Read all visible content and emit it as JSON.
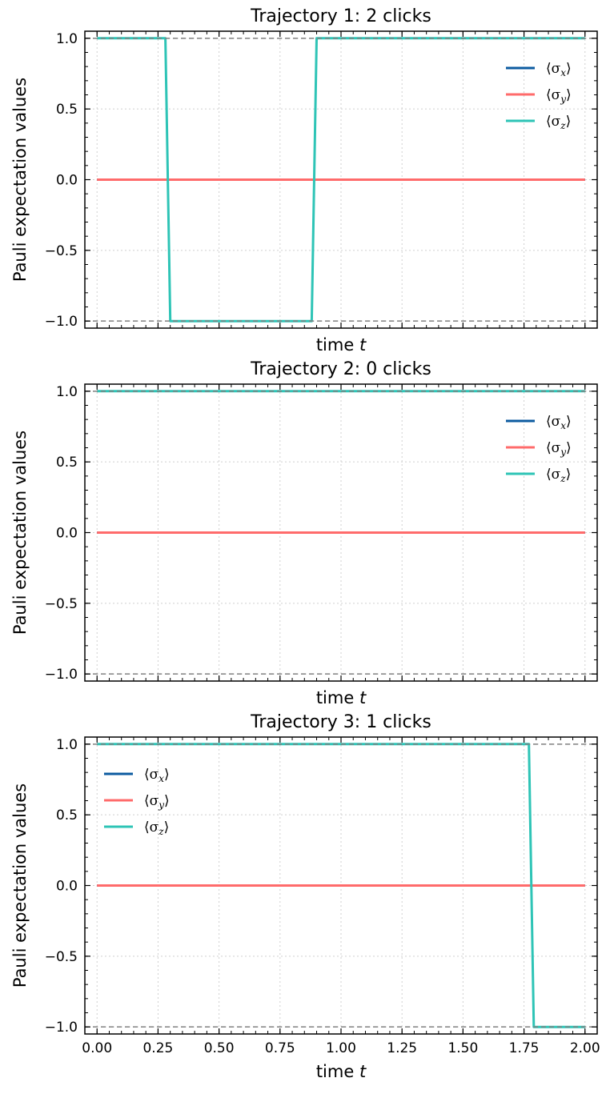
{
  "chart_data": [
    {
      "type": "line",
      "title": "Trajectory 1: 2 clicks",
      "xlabel": "time t",
      "ylabel": "Pauli expectation values",
      "xlim": [
        -0.05,
        2.05
      ],
      "ylim": [
        -1.05,
        1.05
      ],
      "x_ticks": [
        0.0,
        0.25,
        0.5,
        0.75,
        1.0,
        1.25,
        1.5,
        1.75,
        2.0
      ],
      "x_tick_labels_shown": false,
      "y_ticks": [
        -1.0,
        -0.5,
        0.0,
        0.5,
        1.0
      ],
      "y_tick_labels": [
        "−1.0",
        "−0.5",
        "0.0",
        "0.5",
        "1.0"
      ],
      "reference_lines": [
        1.0,
        -1.0
      ],
      "grid": true,
      "legend_position": "upper right",
      "series": [
        {
          "name": "⟨σx⟩",
          "color": "#0c5ba0",
          "x": [
            0.0,
            2.0
          ],
          "y": [
            0.0,
            0.0
          ]
        },
        {
          "name": "⟨σy⟩",
          "color": "#ff6b6b",
          "x": [
            0.0,
            2.0
          ],
          "y": [
            0.0,
            0.0
          ]
        },
        {
          "name": "⟨σz⟩",
          "color": "#2ec4b6",
          "x": [
            0.0,
            0.28,
            0.3,
            0.88,
            0.9,
            2.0
          ],
          "y": [
            1.0,
            1.0,
            -1.0,
            -1.0,
            1.0,
            1.0
          ]
        }
      ]
    },
    {
      "type": "line",
      "title": "Trajectory 2: 0 clicks",
      "xlabel": "time t",
      "ylabel": "Pauli expectation values",
      "xlim": [
        -0.05,
        2.05
      ],
      "ylim": [
        -1.05,
        1.05
      ],
      "x_ticks": [
        0.0,
        0.25,
        0.5,
        0.75,
        1.0,
        1.25,
        1.5,
        1.75,
        2.0
      ],
      "x_tick_labels_shown": false,
      "y_ticks": [
        -1.0,
        -0.5,
        0.0,
        0.5,
        1.0
      ],
      "y_tick_labels": [
        "−1.0",
        "−0.5",
        "0.0",
        "0.5",
        "1.0"
      ],
      "reference_lines": [
        1.0,
        -1.0
      ],
      "grid": true,
      "legend_position": "upper right",
      "series": [
        {
          "name": "⟨σx⟩",
          "color": "#0c5ba0",
          "x": [
            0.0,
            2.0
          ],
          "y": [
            0.0,
            0.0
          ]
        },
        {
          "name": "⟨σy⟩",
          "color": "#ff6b6b",
          "x": [
            0.0,
            2.0
          ],
          "y": [
            0.0,
            0.0
          ]
        },
        {
          "name": "⟨σz⟩",
          "color": "#2ec4b6",
          "x": [
            0.0,
            2.0
          ],
          "y": [
            1.0,
            1.0
          ]
        }
      ]
    },
    {
      "type": "line",
      "title": "Trajectory 3: 1 clicks",
      "xlabel": "time t",
      "ylabel": "Pauli expectation values",
      "xlim": [
        -0.05,
        2.05
      ],
      "ylim": [
        -1.05,
        1.05
      ],
      "x_ticks": [
        0.0,
        0.25,
        0.5,
        0.75,
        1.0,
        1.25,
        1.5,
        1.75,
        2.0
      ],
      "x_tick_labels": [
        "0.00",
        "0.25",
        "0.50",
        "0.75",
        "1.00",
        "1.25",
        "1.50",
        "1.75",
        "2.00"
      ],
      "x_tick_labels_shown": true,
      "y_ticks": [
        -1.0,
        -0.5,
        0.0,
        0.5,
        1.0
      ],
      "y_tick_labels": [
        "−1.0",
        "−0.5",
        "0.0",
        "0.5",
        "1.0"
      ],
      "reference_lines": [
        1.0,
        -1.0
      ],
      "grid": true,
      "legend_position": "upper left",
      "series": [
        {
          "name": "⟨σx⟩",
          "color": "#0c5ba0",
          "x": [
            0.0,
            2.0
          ],
          "y": [
            0.0,
            0.0
          ]
        },
        {
          "name": "⟨σy⟩",
          "color": "#ff6b6b",
          "x": [
            0.0,
            2.0
          ],
          "y": [
            0.0,
            0.0
          ]
        },
        {
          "name": "⟨σz⟩",
          "color": "#2ec4b6",
          "x": [
            0.0,
            1.77,
            1.79,
            2.0
          ],
          "y": [
            1.0,
            1.0,
            -1.0,
            -1.0
          ]
        }
      ]
    }
  ]
}
